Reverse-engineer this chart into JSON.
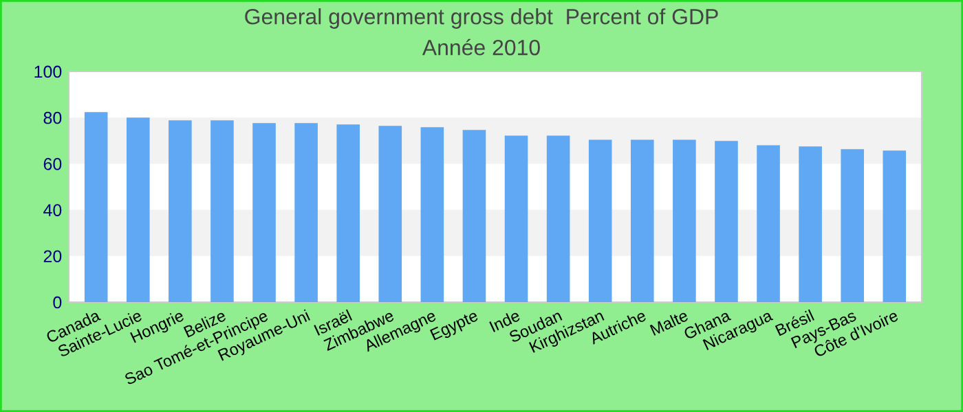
{
  "chart_data": {
    "type": "bar",
    "title": "General government gross debt  Percent of GDP",
    "subtitle": "Année 2010",
    "categories": [
      "Canada",
      "Sainte-Lucie",
      "Hongrie",
      "Belize",
      "Sao Tomé-et-Principe",
      "Royaume-Uni",
      "Israël",
      "Zimbabwe",
      "Allemagne",
      "Egypte",
      "Inde",
      "Soudan",
      "Kirghizstan",
      "Autriche",
      "Malte",
      "Ghana",
      "Nicaragua",
      "Brésil",
      "Pays-Bas",
      "Côte d'Ivoire"
    ],
    "values": [
      82.4,
      80.0,
      78.8,
      78.8,
      77.6,
      77.6,
      77.0,
      76.4,
      75.8,
      74.6,
      72.2,
      72.2,
      70.4,
      70.4,
      70.4,
      69.9,
      68.0,
      67.5,
      66.3,
      65.7
    ],
    "color": "#60a8f4",
    "ylim": [
      0,
      100
    ],
    "yticks": [
      0,
      20,
      40,
      60,
      80,
      100
    ],
    "bands": [
      {
        "axis": "y",
        "from": 20,
        "to": 40,
        "color": "#f2f2f2"
      },
      {
        "axis": "y",
        "from": 60,
        "to": 80,
        "color": "#f2f2f2"
      }
    ]
  }
}
